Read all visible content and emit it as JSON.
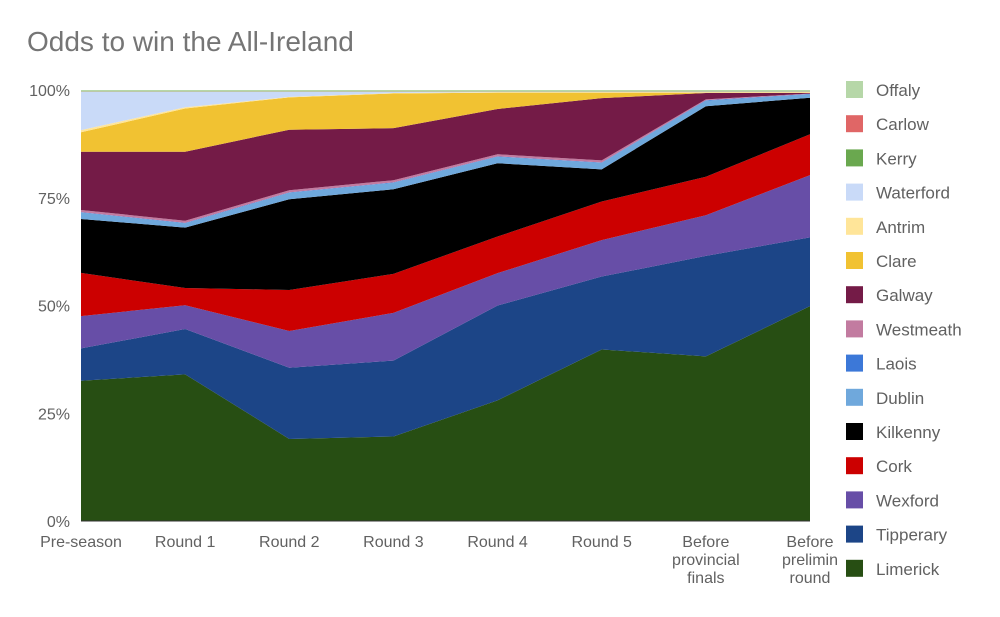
{
  "chart_data": {
    "type": "area",
    "stacked": "percent",
    "title": "Odds to win the All-Ireland",
    "xlabel": "",
    "ylabel": "",
    "categories": [
      [
        "Pre-season"
      ],
      [
        "Round 1"
      ],
      [
        "Round 2"
      ],
      [
        "Round 3"
      ],
      [
        "Round 4"
      ],
      [
        "Round 5"
      ],
      [
        "Before",
        "provincial",
        "finals"
      ],
      [
        "Before",
        "prelimin",
        "round"
      ]
    ],
    "y_ticks": [
      "0%",
      "25%",
      "50%",
      "75%",
      "100%"
    ],
    "ylim": [
      0,
      100
    ],
    "grid": false,
    "legend_position": "right",
    "series": [
      {
        "name": "Limerick",
        "color": "#274e13",
        "values": [
          32.5,
          34,
          19,
          19.5,
          28,
          40,
          38.5,
          50
        ]
      },
      {
        "name": "Tipperary",
        "color": "#1c4587",
        "values": [
          7.5,
          10.5,
          16.5,
          17.5,
          22,
          17,
          23.5,
          16
        ]
      },
      {
        "name": "Wexford",
        "color": "#674ea7",
        "values": [
          7.5,
          5.5,
          8.5,
          11,
          7.5,
          8.5,
          9.5,
          14.5
        ]
      },
      {
        "name": "Cork",
        "color": "#cc0000",
        "values": [
          10,
          4,
          9.5,
          9,
          8.5,
          9,
          9,
          9.5
        ]
      },
      {
        "name": "Kilkenny",
        "color": "#000000",
        "values": [
          12.5,
          14,
          21,
          19.5,
          17,
          7.5,
          16.5,
          8.5
        ]
      },
      {
        "name": "Dublin",
        "color": "#6fa8dc",
        "values": [
          1.5,
          1,
          1.5,
          1.5,
          1.5,
          1.5,
          1.3,
          0.8
        ]
      },
      {
        "name": "Laois",
        "color": "#3c78d8",
        "values": [
          0.1,
          0.1,
          0.1,
          0.1,
          0.1,
          0.1,
          0.1,
          0.1
        ]
      },
      {
        "name": "Westmeath",
        "color": "#c27ba0",
        "values": [
          0.5,
          0.5,
          0.5,
          0.5,
          0.5,
          0.5,
          0.2,
          0.1
        ]
      },
      {
        "name": "Galway",
        "color": "#741b47",
        "values": [
          13.5,
          16,
          14,
          12,
          10.5,
          14.5,
          1.5,
          0.1
        ]
      },
      {
        "name": "Clare",
        "color": "#f1c232",
        "values": [
          4.5,
          10,
          7.5,
          8,
          3.8,
          1.3,
          0.1,
          0.1
        ]
      },
      {
        "name": "Antrim",
        "color": "#ffe599",
        "values": [
          0.5,
          0.3,
          0.1,
          0.1,
          0.1,
          0.1,
          0.1,
          0.1
        ]
      },
      {
        "name": "Waterford",
        "color": "#c9daf8",
        "values": [
          8.9,
          3.6,
          1.2,
          0.3,
          0.1,
          0.1,
          0.1,
          0.1
        ]
      },
      {
        "name": "Kerry",
        "color": "#6aa84f",
        "values": [
          0.05,
          0.05,
          0.05,
          0.05,
          0.05,
          0.05,
          0.05,
          0.05
        ]
      },
      {
        "name": "Carlow",
        "color": "#e06666",
        "values": [
          0.05,
          0.05,
          0.05,
          0.05,
          0.05,
          0.05,
          0.05,
          0.05
        ]
      },
      {
        "name": "Offaly",
        "color": "#b6d7a8",
        "values": [
          0.3,
          0.3,
          0.3,
          0.3,
          0.3,
          0.3,
          0.3,
          0.3
        ]
      }
    ]
  }
}
